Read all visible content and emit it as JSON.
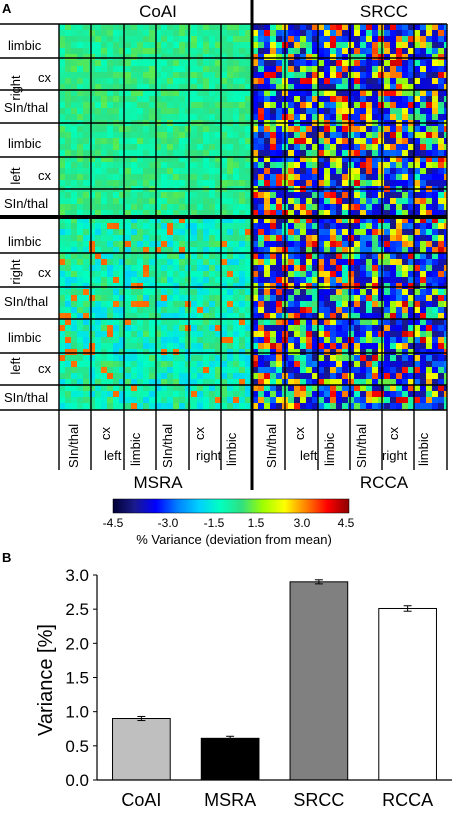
{
  "panel_a": {
    "label": "A",
    "quadrant_titles": [
      "CoAI",
      "SRCC",
      "MSRA",
      "RCCA"
    ],
    "row_sublabels": [
      "limbic",
      "cx",
      "SIn/thal"
    ],
    "side_labels": [
      "right",
      "left"
    ],
    "col_sublabels": [
      "SIn/thal",
      "cx",
      "limbic"
    ],
    "col_side_labels": [
      "left",
      "right"
    ],
    "colorbar": {
      "ticks": [
        "-4.5",
        "-3.0",
        "-1.5",
        "1.5",
        "3.0",
        "4.5"
      ],
      "label": "% Variance (deviation from mean)",
      "stops": [
        "#000033",
        "#1a1a8c",
        "#0000ff",
        "#0080ff",
        "#00d0ff",
        "#00ffc0",
        "#30e080",
        "#a0ff00",
        "#ffff00",
        "#ff8000",
        "#ff0000",
        "#8b0000"
      ]
    }
  },
  "panel_b": {
    "label": "B"
  },
  "chart_data": {
    "type": "bar",
    "categories": [
      "CoAI",
      "MSRA",
      "SRCC",
      "RCCA"
    ],
    "values": [
      0.9,
      0.61,
      2.9,
      2.51
    ],
    "errors": [
      0.03,
      0.03,
      0.03,
      0.04
    ],
    "colors": [
      "#bfbfbf",
      "#000000",
      "#808080",
      "#ffffff"
    ],
    "ylabel": "Variance [%]",
    "ylim": [
      0,
      3.0
    ],
    "yticks": [
      "0.0",
      "0.5",
      "1.0",
      "1.5",
      "2.0",
      "2.5",
      "3.0"
    ],
    "grid": false
  }
}
